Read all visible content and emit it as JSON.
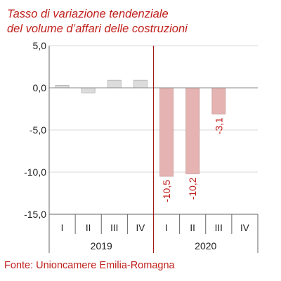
{
  "chart_data": {
    "type": "bar",
    "title": [
      "Tasso di variazione tendenziale",
      "del volume d’affari delle costruzioni"
    ],
    "categories": [
      "I",
      "II",
      "III",
      "IV",
      "I",
      "II",
      "III",
      "IV"
    ],
    "groups": [
      {
        "label": "2019",
        "categories": [
          "I",
          "II",
          "III",
          "IV"
        ]
      },
      {
        "label": "2020",
        "categories": [
          "I",
          "II",
          "III",
          "IV"
        ]
      }
    ],
    "values": [
      0.3,
      -0.6,
      0.9,
      0.9,
      -10.5,
      -10.2,
      -3.1,
      null
    ],
    "data_labels": [
      "",
      "",
      "",
      "",
      "-10,5",
      "-10,2",
      "-3,1",
      ""
    ],
    "yticks": [
      "5,0",
      "0,0",
      "-5,0",
      "-10,0",
      "-15,0"
    ],
    "ytick_values": [
      5,
      0,
      -5,
      -10,
      -15
    ],
    "ylim": [
      -15,
      5
    ],
    "grid": true,
    "colors": {
      "bar_2019": "#dcdcdc",
      "bar_2019_border": "#b0b0b0",
      "bar_2020": "#e5b4b2",
      "bar_2020_border": "#c99896",
      "divider": "#9e1a16",
      "grid": "#d9d9d9",
      "axis": "#666666",
      "text_accent": "#c0201b"
    }
  },
  "source": "Fonte: Unioncamere Emilia-Romagna"
}
